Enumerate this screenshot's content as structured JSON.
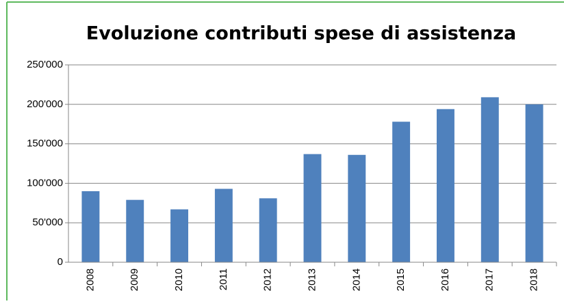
{
  "chart_data": {
    "type": "bar",
    "title": "Evoluzione contributi spese di assistenza",
    "categories": [
      "2008",
      "2009",
      "2010",
      "2011",
      "2012",
      "2013",
      "2014",
      "2015",
      "2016",
      "2017",
      "2018"
    ],
    "values": [
      90000,
      79000,
      67000,
      93000,
      81000,
      137000,
      136000,
      178000,
      194000,
      209000,
      200000
    ],
    "color": "#4f81bd",
    "ylim": [
      0,
      250000
    ],
    "yticks": [
      0,
      {
        "value": 50000,
        "label": "50'000"
      },
      {
        "value": 100000,
        "label": "100'000"
      },
      {
        "value": 150000,
        "label": "150'000"
      },
      {
        "value": 200000,
        "label": "200'000"
      },
      {
        "value": 250000,
        "label": "250'000"
      }
    ],
    "grid": true
  }
}
